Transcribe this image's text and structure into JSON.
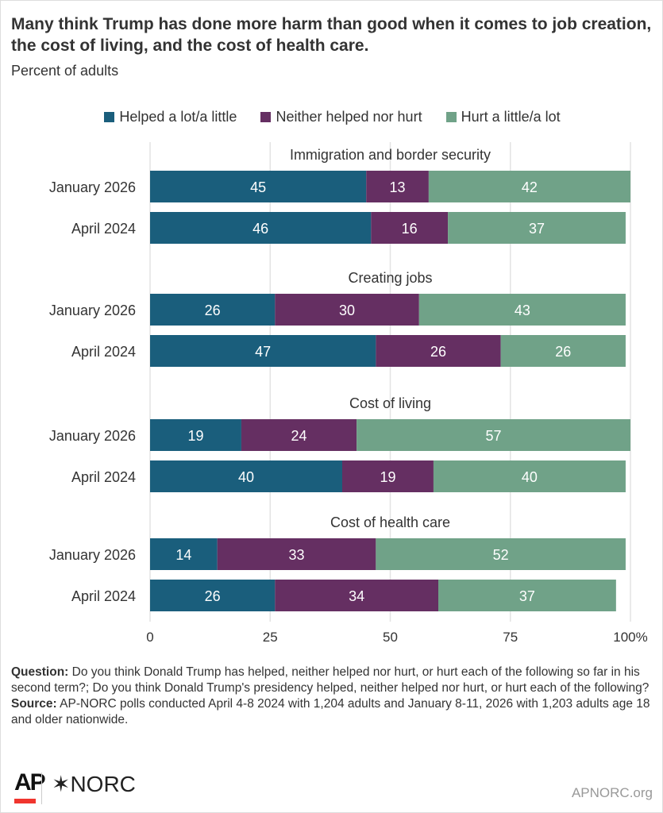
{
  "title": "Many think Trump has done more harm than good when it comes to job creation, the cost of living, and the cost of health care.",
  "subtitle": "Percent of adults",
  "colors": {
    "helped": "#1a5e7c",
    "neither": "#652f62",
    "hurt": "#70a288"
  },
  "chart_data": {
    "type": "bar",
    "orientation": "horizontal-stacked",
    "legend_position": "top",
    "series_names": [
      "Helped a lot/a little",
      "Neither helped nor hurt",
      "Hurt a little/a lot"
    ],
    "groups": [
      {
        "label": "Immigration and border security",
        "rows": [
          {
            "label": "January 2026",
            "values": [
              45,
              13,
              42
            ]
          },
          {
            "label": "April 2024",
            "values": [
              46,
              16,
              37
            ]
          }
        ]
      },
      {
        "label": "Creating jobs",
        "rows": [
          {
            "label": "January 2026",
            "values": [
              26,
              30,
              43
            ]
          },
          {
            "label": "April 2024",
            "values": [
              47,
              26,
              26
            ]
          }
        ]
      },
      {
        "label": "Cost of living",
        "rows": [
          {
            "label": "January 2026",
            "values": [
              19,
              24,
              57
            ]
          },
          {
            "label": "April 2024",
            "values": [
              40,
              19,
              40
            ]
          }
        ]
      },
      {
        "label": "Cost of health care",
        "rows": [
          {
            "label": "January 2026",
            "values": [
              14,
              33,
              52
            ]
          },
          {
            "label": "April 2024",
            "values": [
              26,
              34,
              37
            ]
          }
        ]
      }
    ],
    "xlim": [
      0,
      100
    ],
    "xticks": [
      "0",
      "25",
      "50",
      "75",
      "100%"
    ],
    "grid": true
  },
  "notes": {
    "question_label": "Question:",
    "question": " Do you think Donald Trump has helped, neither helped nor hurt, or hurt each of the following so far in his second term?; Do you think Donald Trump's presidency helped, neither helped nor hurt, or hurt each of the following?",
    "source_label": "Source:",
    "source": " AP-NORC polls conducted April 4-8 2024 with 1,204 adults and January 8-11, 2026 with 1,203 adults age 18 and older nationwide."
  },
  "footer": {
    "ap_logo": "AP",
    "norc_logo": "✶NORC",
    "site": "APNORC.org"
  }
}
